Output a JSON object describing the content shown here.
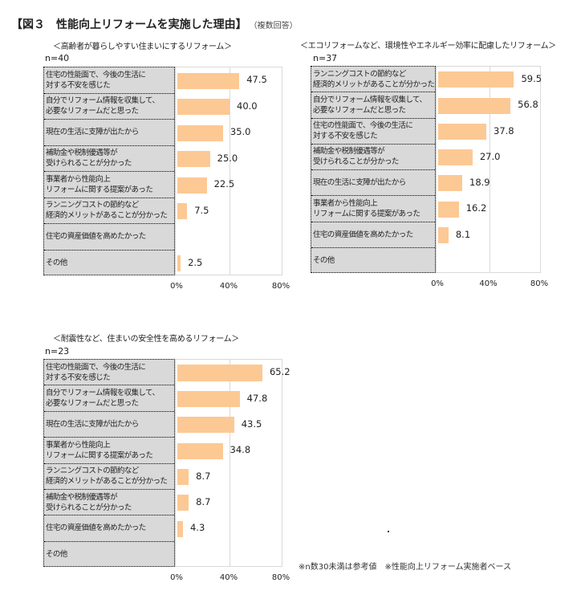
{
  "title": "【図３　性能向上リフォームを実施した理由】",
  "title_note": "（複数回答）",
  "footnote": "※n数30未満は参考値　※性能向上リフォーム実施者ベース",
  "chart_data": [
    {
      "type": "bar",
      "orientation": "horizontal",
      "title": "＜高齢者が暮らしやすい住まいにするリフォーム＞",
      "n_label": "n=40",
      "xlim": [
        0,
        80
      ],
      "ticks": [
        "0%",
        "40%",
        "80%"
      ],
      "grid": true,
      "bar_color": "#fcc994",
      "categories": [
        "住宅の性能面で、今後の生活に\n対する不安を感じた",
        "自分でリフォーム情報を収集して、\n必要なリフォームだと思った",
        "現在の生活に支障が出たから",
        "補助金や税制優遇等が\n受けられることが分かった",
        "事業者から性能向上\nリフォームに関する提案があった",
        "ランニングコストの節約など\n経済的メリットがあることが分かった",
        "住宅の資産価値を高めたかった",
        "その他"
      ],
      "values": [
        47.5,
        40.0,
        35.0,
        25.0,
        22.5,
        7.5,
        null,
        2.5
      ],
      "labels": [
        "47.5",
        "40.0",
        "35.0",
        "25.0",
        "22.5",
        "7.5",
        "",
        "2.5"
      ]
    },
    {
      "type": "bar",
      "orientation": "horizontal",
      "title": "＜エコリフォームなど、環境性やエネルギー効率に配慮したリフォーム＞",
      "n_label": "n=37",
      "xlim": [
        0,
        80
      ],
      "ticks": [
        "0%",
        "40%",
        "80%"
      ],
      "grid": true,
      "bar_color": "#fcc994",
      "categories": [
        "ランニングコストの節約など\n経済的メリットがあることが分かった",
        "自分でリフォーム情報を収集して、\n必要なリフォームだと思った",
        "住宅の性能面で、今後の生活に\n対する不安を感じた",
        "補助金や税制優遇等が\n受けられることが分かった",
        "現在の生活に支障が出たから",
        "事業者から性能向上\nリフォームに関する提案があった",
        "住宅の資産価値を高めたかった",
        "その他"
      ],
      "values": [
        59.5,
        56.8,
        37.8,
        27.0,
        18.9,
        16.2,
        8.1,
        null
      ],
      "labels": [
        "59.5",
        "56.8",
        "37.8",
        "27.0",
        "18.9",
        "16.2",
        "8.1",
        ""
      ]
    },
    {
      "type": "bar",
      "orientation": "horizontal",
      "title": "＜耐震性など、住まいの安全性を高めるリフォーム＞",
      "n_label": "n=23",
      "xlim": [
        0,
        80
      ],
      "ticks": [
        "0%",
        "40%",
        "80%"
      ],
      "grid": true,
      "bar_color": "#fcc994",
      "categories": [
        "住宅の性能面で、今後の生活に\n対する不安を感じた",
        "自分でリフォーム情報を収集して、\n必要なリフォームだと思った",
        "現在の生活に支障が出たから",
        "事業者から性能向上\nリフォームに関する提案があった",
        "ランニングコストの節約など\n経済的メリットがあることが分かった",
        "補助金や税制優遇等が\n受けられることが分かった",
        "住宅の資産価値を高めたかった",
        "その他"
      ],
      "values": [
        65.2,
        47.8,
        43.5,
        34.8,
        8.7,
        8.7,
        4.3,
        null
      ],
      "labels": [
        "65.2",
        "47.8",
        "43.5",
        "34.8",
        "8.7",
        "8.7",
        "4.3",
        ""
      ]
    }
  ]
}
